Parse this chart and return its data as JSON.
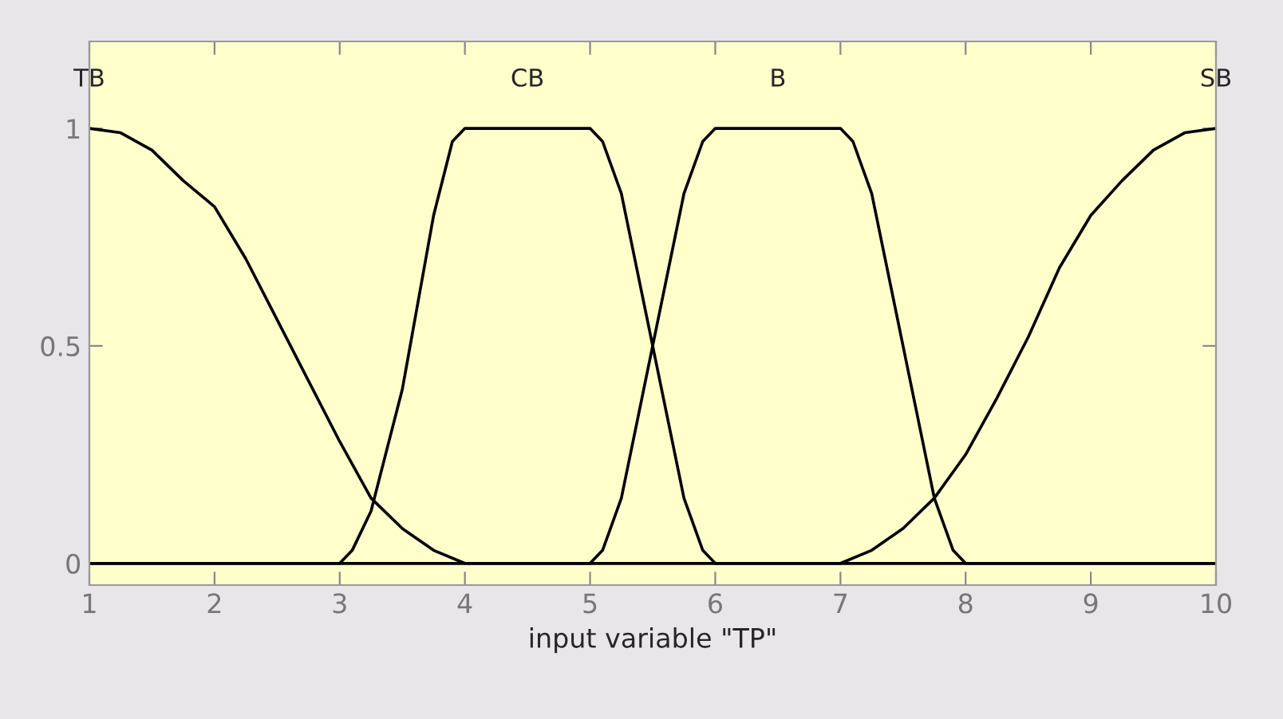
{
  "chart_data": {
    "type": "line",
    "xlabel": "input variable \"TP\"",
    "xlim": [
      1,
      10
    ],
    "ylim": [
      -0.05,
      1.2
    ],
    "xticks": [
      1,
      2,
      3,
      4,
      5,
      6,
      7,
      8,
      9,
      10
    ],
    "yticks": [
      0,
      0.5,
      1
    ],
    "grid": false,
    "legend": false,
    "marker": "none",
    "line_style": "solid",
    "series": [
      {
        "name": "TB",
        "color": "#000000",
        "x": [
          1,
          1.25,
          1.5,
          1.75,
          2,
          2.25,
          2.5,
          2.75,
          3,
          3.25,
          3.5,
          3.75,
          4,
          10
        ],
        "values": [
          1,
          0.99,
          0.95,
          0.88,
          0.82,
          0.7,
          0.56,
          0.42,
          0.28,
          0.15,
          0.08,
          0.03,
          0,
          0
        ]
      },
      {
        "name": "CB",
        "color": "#000000",
        "x": [
          1,
          3,
          3.1,
          3.25,
          3.5,
          3.75,
          3.9,
          4,
          5,
          5.1,
          5.25,
          5.5,
          5.75,
          5.9,
          6,
          10
        ],
        "values": [
          0,
          0,
          0.03,
          0.12,
          0.4,
          0.8,
          0.97,
          1,
          1,
          0.97,
          0.85,
          0.5,
          0.15,
          0.03,
          0,
          0
        ]
      },
      {
        "name": "B",
        "color": "#000000",
        "x": [
          1,
          5,
          5.1,
          5.25,
          5.5,
          5.75,
          5.9,
          6,
          7,
          7.1,
          7.25,
          7.5,
          7.75,
          7.9,
          8,
          10
        ],
        "values": [
          0,
          0,
          0.03,
          0.15,
          0.5,
          0.85,
          0.97,
          1,
          1,
          0.97,
          0.85,
          0.5,
          0.15,
          0.03,
          0,
          0
        ]
      },
      {
        "name": "SB",
        "color": "#000000",
        "x": [
          1,
          7,
          7.25,
          7.5,
          7.75,
          8,
          8.25,
          8.5,
          8.75,
          9,
          9.25,
          9.5,
          9.75,
          10
        ],
        "values": [
          0,
          0,
          0.03,
          0.08,
          0.15,
          0.25,
          0.38,
          0.52,
          0.68,
          0.8,
          0.88,
          0.95,
          0.99,
          1
        ]
      }
    ]
  }
}
